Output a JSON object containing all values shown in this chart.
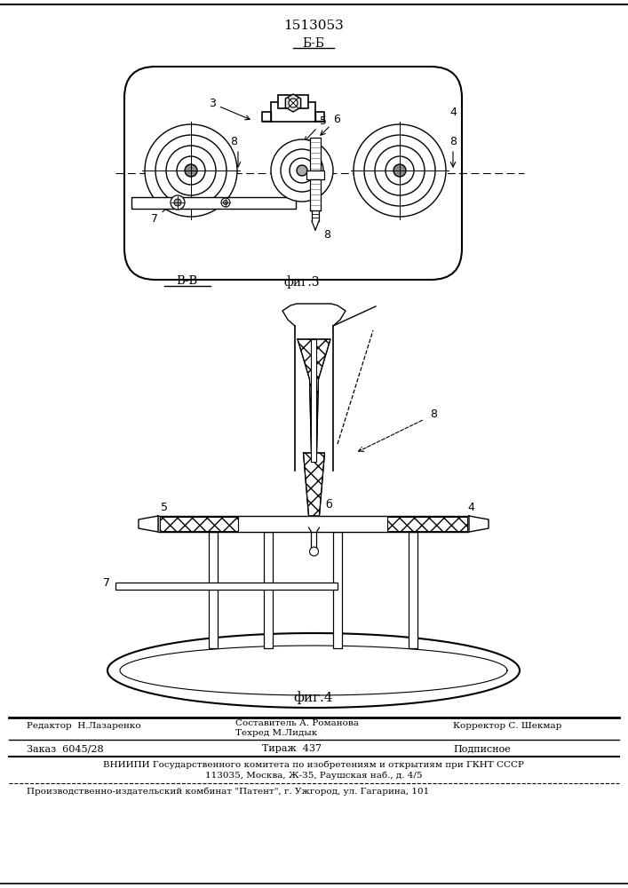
{
  "patent_number": "1513053",
  "fig3_label": "Б-Б",
  "fig3_caption": "фиг.3",
  "fig4_caption": "фиг.4",
  "fig4_section": "В-В",
  "footer_line1_left": "Редактор  Н.Лазаренко",
  "footer_comp1": "Составитель А. Романова",
  "footer_comp2": "Техред М.Лидык",
  "footer_line1_right": "Корректор С. Шекмар",
  "footer_line2_left": "Заказ  6045/28",
  "footer_line2_mid": "Тираж  437",
  "footer_line2_right": "Подписное",
  "footer_line3": "ВНИИПИ Государственного комитета по изобретениям и открытиям при ГКНТ СССР",
  "footer_line4": "113035, Москва, Ж-35, Раушская наб., д. 4/5",
  "footer_line5": "Производственно-издательский комбинат \"Патент\", г. Ужгород, ул. Гагарина, 101",
  "bg_color": "#ffffff",
  "line_color": "#000000"
}
